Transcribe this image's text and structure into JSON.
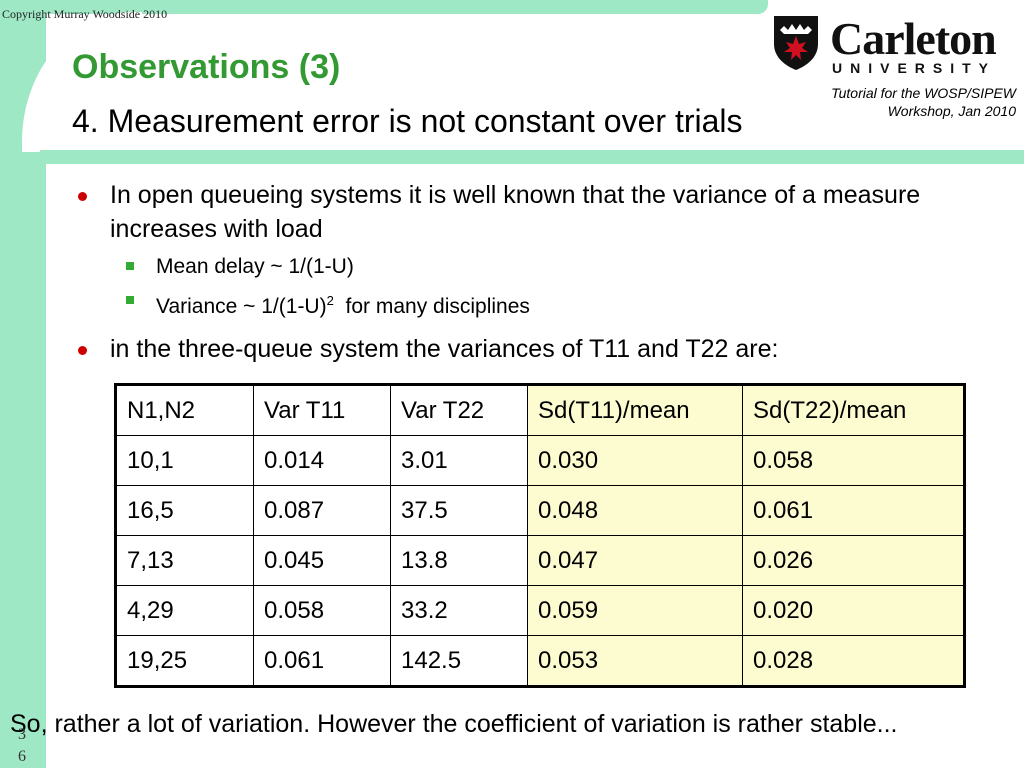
{
  "copyright": "Copyright Murray Woodside 2010",
  "title": "Observations (3)",
  "subtitle": "4. Measurement error is not constant over trials",
  "logo": {
    "wordmark": "Carleton",
    "university": "UNIVERSITY"
  },
  "tutorial_note": [
    "Tutorial for the WOSP/SIPEW",
    "Workshop, Jan 2010"
  ],
  "bullets": {
    "b1": "In open queueing systems it is well known that the variance of a measure increases with load",
    "sub1": "Mean delay ~ 1/(1-U)",
    "sub2_main": "Variance ~ 1/(1-U)",
    "sub2_sup": "2",
    "sub2_tail": "  for many disciplines",
    "b2": "in the three-queue system the variances of T11 and T22 are:"
  },
  "table": {
    "headers": [
      "N1,N2",
      "Var T11",
      "Var T22",
      "Sd(T11)/mean",
      "Sd(T22)/mean"
    ],
    "rows": [
      [
        "10,1",
        "0.014",
        "3.01",
        "0.030",
        "0.058"
      ],
      [
        "16,5",
        "0.087",
        "37.5",
        "0.048",
        "0.061"
      ],
      [
        "7,13",
        "0.045",
        "13.8",
        "0.047",
        "0.026"
      ],
      [
        "4,29",
        "0.058",
        "33.2",
        "0.059",
        "0.020"
      ],
      [
        "19,25",
        "0.061",
        "142.5",
        "0.053",
        "0.028"
      ]
    ]
  },
  "footer": "So, rather a lot of variation. However the coefficient of variation is rather stable...",
  "page_number": [
    "3",
    "6"
  ],
  "colors": {
    "accent_mint": "#9fe8c6",
    "title_green": "#339933",
    "bullet_red": "#cc0000",
    "highlight": "#fdfbd0"
  }
}
